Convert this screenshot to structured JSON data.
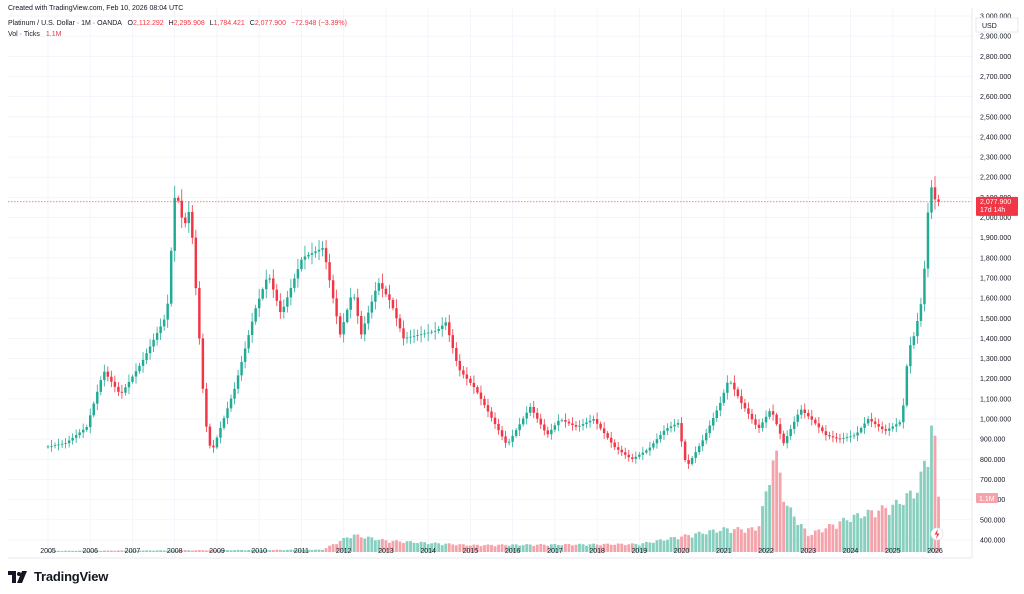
{
  "credit": "Created with TradingView.com, Feb 10, 2026 08:04 UTC",
  "legend": {
    "symbol": "Platinum / U.S. Dollar · 1M · OANDA",
    "o_label": "O",
    "o_value": "2,112.292",
    "h_label": "H",
    "h_value": "2,295.908",
    "l_label": "L",
    "l_value": "1,784.421",
    "c_label": "C",
    "c_value": "2,077.900",
    "change": "−72.948 (−3.39%)",
    "vol_label": "Vol · Ticks",
    "vol_value": "1.1M"
  },
  "currency_button": "USD",
  "price_tag": {
    "price": "2,077.900",
    "countdown": "17d 14h"
  },
  "volume_tag": "1.1M",
  "brand": "TradingView",
  "colors": {
    "up": "#22ab94",
    "down": "#f23645",
    "vol_up": "#89cfc0",
    "vol_down": "#f5a3ab",
    "grid": "#f0f3fa",
    "text": "#131722"
  },
  "chart_data": {
    "type": "candlestick",
    "title": "Platinum / U.S. Dollar · 1M · OANDA",
    "interval": "1M",
    "y_axis": {
      "ticks": [
        "400.000",
        "500.000",
        "600.000",
        "700.000",
        "800.000",
        "900.000",
        "1,000.000",
        "1,100.000",
        "1,200.000",
        "1,300.000",
        "1,400.000",
        "1,500.000",
        "1,600.000",
        "1,700.000",
        "1,800.000",
        "1,900.000",
        "2,000.000",
        "2,100.000",
        "2,200.000",
        "2,300.000",
        "2,400.000",
        "2,500.000",
        "2,600.000",
        "2,700.000",
        "2,800.000",
        "2,900.000",
        "3,000.000"
      ],
      "range": [
        340,
        3040
      ],
      "position": "right"
    },
    "x_axis": {
      "ticks": [
        "2005",
        "2006",
        "2007",
        "2008",
        "2009",
        "2010",
        "2011",
        "2012",
        "2013",
        "2014",
        "2015",
        "2016",
        "2017",
        "2018",
        "2019",
        "2020",
        "2021",
        "2022",
        "2023",
        "2024",
        "2025",
        "2026"
      ]
    },
    "last_price": 2077.9,
    "price_anchors": [
      {
        "t": 2005.0,
        "p": 860
      },
      {
        "t": 2005.5,
        "p": 880
      },
      {
        "t": 2006.0,
        "p": 960
      },
      {
        "t": 2006.4,
        "p": 1240
      },
      {
        "t": 2006.8,
        "p": 1120
      },
      {
        "t": 2007.3,
        "p": 1280
      },
      {
        "t": 2007.9,
        "p": 1520
      },
      {
        "t": 2008.1,
        "p": 2150
      },
      {
        "t": 2008.3,
        "p": 1950
      },
      {
        "t": 2008.45,
        "p": 2050
      },
      {
        "t": 2008.8,
        "p": 1000
      },
      {
        "t": 2008.95,
        "p": 830
      },
      {
        "t": 2009.5,
        "p": 1150
      },
      {
        "t": 2010.0,
        "p": 1550
      },
      {
        "t": 2010.3,
        "p": 1720
      },
      {
        "t": 2010.6,
        "p": 1520
      },
      {
        "t": 2011.1,
        "p": 1800
      },
      {
        "t": 2011.6,
        "p": 1850
      },
      {
        "t": 2012.0,
        "p": 1420
      },
      {
        "t": 2012.3,
        "p": 1640
      },
      {
        "t": 2012.5,
        "p": 1420
      },
      {
        "t": 2012.9,
        "p": 1680
      },
      {
        "t": 2013.2,
        "p": 1580
      },
      {
        "t": 2013.5,
        "p": 1400
      },
      {
        "t": 2013.9,
        "p": 1420
      },
      {
        "t": 2014.3,
        "p": 1440
      },
      {
        "t": 2014.5,
        "p": 1480
      },
      {
        "t": 2014.8,
        "p": 1250
      },
      {
        "t": 2015.2,
        "p": 1150
      },
      {
        "t": 2015.6,
        "p": 1000
      },
      {
        "t": 2015.95,
        "p": 870
      },
      {
        "t": 2016.5,
        "p": 1060
      },
      {
        "t": 2016.9,
        "p": 920
      },
      {
        "t": 2017.2,
        "p": 1000
      },
      {
        "t": 2017.6,
        "p": 960
      },
      {
        "t": 2018.0,
        "p": 1000
      },
      {
        "t": 2018.5,
        "p": 860
      },
      {
        "t": 2018.9,
        "p": 800
      },
      {
        "t": 2019.3,
        "p": 850
      },
      {
        "t": 2019.7,
        "p": 950
      },
      {
        "t": 2020.0,
        "p": 980
      },
      {
        "t": 2020.2,
        "p": 760
      },
      {
        "t": 2020.6,
        "p": 900
      },
      {
        "t": 2021.0,
        "p": 1080
      },
      {
        "t": 2021.2,
        "p": 1200
      },
      {
        "t": 2021.5,
        "p": 1080
      },
      {
        "t": 2021.9,
        "p": 950
      },
      {
        "t": 2022.2,
        "p": 1050
      },
      {
        "t": 2022.5,
        "p": 880
      },
      {
        "t": 2022.9,
        "p": 1050
      },
      {
        "t": 2023.2,
        "p": 990
      },
      {
        "t": 2023.5,
        "p": 920
      },
      {
        "t": 2023.8,
        "p": 900
      },
      {
        "t": 2024.2,
        "p": 920
      },
      {
        "t": 2024.5,
        "p": 1000
      },
      {
        "t": 2024.9,
        "p": 940
      },
      {
        "t": 2025.3,
        "p": 990
      },
      {
        "t": 2025.45,
        "p": 1340
      },
      {
        "t": 2025.6,
        "p": 1420
      },
      {
        "t": 2025.8,
        "p": 1620
      },
      {
        "t": 2025.9,
        "p": 2000
      },
      {
        "t": 2026.0,
        "p": 2150
      },
      {
        "t": 2026.1,
        "p": 2077.9
      }
    ],
    "volume_anchors": [
      {
        "t": 2005.0,
        "v": 0.01
      },
      {
        "t": 2011.5,
        "v": 0.02
      },
      {
        "t": 2012.2,
        "v": 0.15
      },
      {
        "t": 2013.0,
        "v": 0.1
      },
      {
        "t": 2015.0,
        "v": 0.06
      },
      {
        "t": 2019.0,
        "v": 0.07
      },
      {
        "t": 2020.2,
        "v": 0.15
      },
      {
        "t": 2021.0,
        "v": 0.2
      },
      {
        "t": 2021.8,
        "v": 0.2
      },
      {
        "t": 2022.0,
        "v": 0.5
      },
      {
        "t": 2022.2,
        "v": 0.9
      },
      {
        "t": 2022.5,
        "v": 0.4
      },
      {
        "t": 2023.0,
        "v": 0.15
      },
      {
        "t": 2024.0,
        "v": 0.3
      },
      {
        "t": 2025.0,
        "v": 0.4
      },
      {
        "t": 2025.6,
        "v": 0.55
      },
      {
        "t": 2025.85,
        "v": 0.92
      },
      {
        "t": 2025.95,
        "v": 1.2
      },
      {
        "t": 2026.1,
        "v": 0.4
      }
    ],
    "volume_last": "1.1M"
  }
}
